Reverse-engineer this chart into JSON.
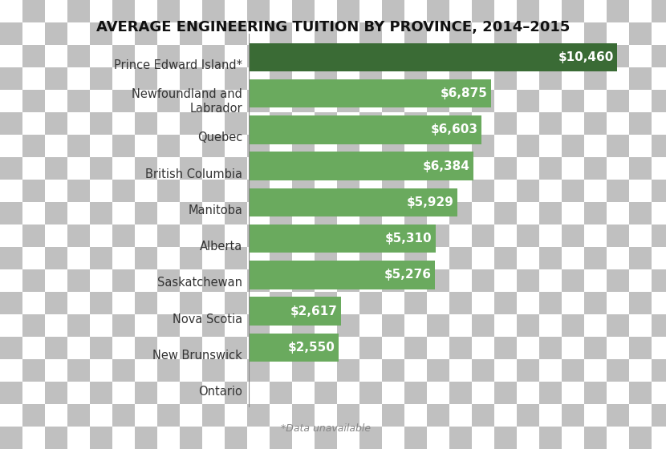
{
  "title": "AVERAGE ENGINEERING TUITION BY PROVINCE, 2014–2015",
  "categories": [
    "Ontario",
    "New Brunswick",
    "Nova Scotia",
    "Saskatchewan",
    "Alberta",
    "Manitoba",
    "British Columbia",
    "Quebec",
    "Newfoundland and\nLabrador",
    "Prince Edward Island*"
  ],
  "values": [
    10460,
    6875,
    6603,
    6384,
    5929,
    5310,
    5276,
    2617,
    2550,
    0
  ],
  "labels": [
    "$10,460",
    "$6,875",
    "$6,603",
    "$6,384",
    "$5,929",
    "$5,310",
    "$5,276",
    "$2,617",
    "$2,550",
    ""
  ],
  "bar_color_top": "#3a6b35",
  "bar_color_rest": "#6aaa5e",
  "footnote": "*Data unavailable",
  "bg_light": "#d9d9d9",
  "bg_dark": "#c0c0c0",
  "title_fontsize": 13,
  "label_fontsize": 11,
  "category_fontsize": 10.5,
  "footnote_fontsize": 9,
  "sq": 28
}
